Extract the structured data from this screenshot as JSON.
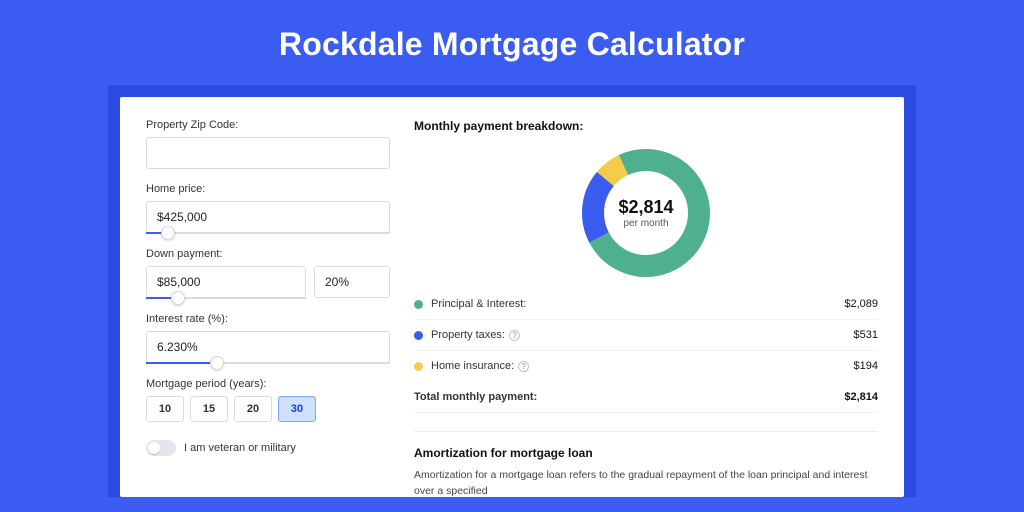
{
  "page": {
    "title": "Rockdale Mortgage Calculator",
    "bg_color": "#3a5cf0",
    "band_color": "#2b4ae0"
  },
  "form": {
    "zip_label": "Property Zip Code:",
    "zip_value": "",
    "home_price_label": "Home price:",
    "home_price_value": "$425,000",
    "home_price_slider_pct": 9,
    "down_payment_label": "Down payment:",
    "down_payment_value": "$85,000",
    "down_payment_pct_value": "20%",
    "down_payment_slider_pct": 20,
    "interest_label": "Interest rate (%):",
    "interest_value": "6.230%",
    "interest_slider_pct": 29,
    "period_label": "Mortgage period (years):",
    "periods": [
      "10",
      "15",
      "20",
      "30"
    ],
    "period_selected": "30",
    "veteran_label": "I am veteran or military",
    "veteran_on": false
  },
  "breakdown": {
    "title": "Monthly payment breakdown:",
    "center_amount": "$2,814",
    "center_sub": "per month",
    "donut": {
      "size": 128,
      "thickness": 22,
      "segments": [
        {
          "label": "Principal & Interest:",
          "value": "$2,089",
          "pct": 74.3,
          "color": "#4fb08f"
        },
        {
          "label": "Property taxes:",
          "value": "$531",
          "pct": 18.8,
          "color": "#3a5cf0",
          "help": true
        },
        {
          "label": "Home insurance:",
          "value": "$194",
          "pct": 6.9,
          "color": "#f5cc4a",
          "help": true
        }
      ]
    },
    "total_label": "Total monthly payment:",
    "total_value": "$2,814"
  },
  "amortization": {
    "title": "Amortization for mortgage loan",
    "body": "Amortization for a mortgage loan refers to the gradual repayment of the loan principal and interest over a specified"
  }
}
